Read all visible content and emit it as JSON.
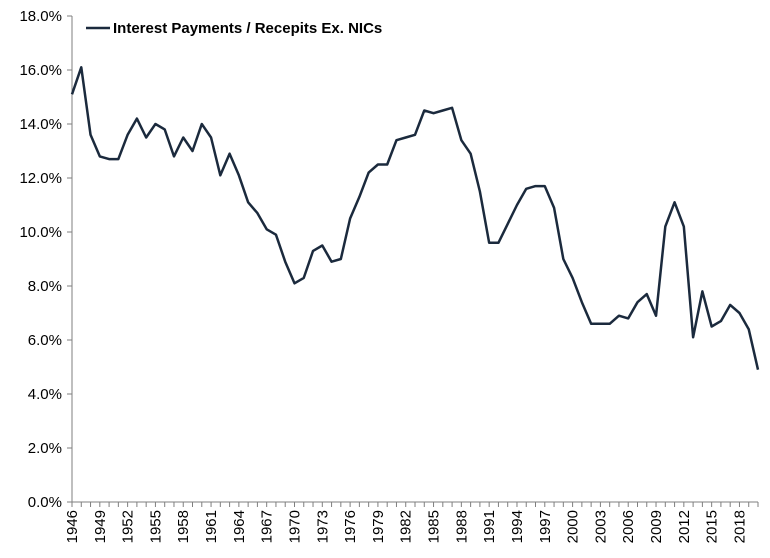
{
  "chart_data": {
    "type": "line",
    "title": "",
    "xlabel": "",
    "ylabel": "",
    "ylim": [
      0,
      18
    ],
    "y_ticks": [
      "0.0%",
      "2.0%",
      "4.0%",
      "6.0%",
      "8.0%",
      "10.0%",
      "12.0%",
      "14.0%",
      "16.0%",
      "18.0%"
    ],
    "x_ticks": [
      "1946",
      "1949",
      "1952",
      "1955",
      "1958",
      "1961",
      "1964",
      "1967",
      "1970",
      "1973",
      "1976",
      "1979",
      "1982",
      "1985",
      "1988",
      "1991",
      "1994",
      "1997",
      "2000",
      "2003",
      "2006",
      "2009",
      "2012",
      "2015",
      "2018"
    ],
    "legend_position": "top-left",
    "grid": false,
    "colors": {
      "line": "#1b2a3d",
      "axis": "#7f7f7f"
    },
    "x": [
      1946,
      1947,
      1948,
      1949,
      1950,
      1951,
      1952,
      1953,
      1954,
      1955,
      1956,
      1957,
      1958,
      1959,
      1960,
      1961,
      1962,
      1963,
      1964,
      1965,
      1966,
      1967,
      1968,
      1969,
      1970,
      1971,
      1972,
      1973,
      1974,
      1975,
      1976,
      1977,
      1978,
      1979,
      1980,
      1981,
      1982,
      1983,
      1984,
      1985,
      1986,
      1987,
      1988,
      1989,
      1990,
      1991,
      1992,
      1993,
      1994,
      1995,
      1996,
      1997,
      1998,
      1999,
      2000,
      2001,
      2002,
      2003,
      2004,
      2005,
      2006,
      2007,
      2008,
      2009,
      2010,
      2011,
      2012,
      2013,
      2014,
      2015,
      2016,
      2017,
      2018,
      2019,
      2020
    ],
    "series": [
      {
        "name": "Interest Payments / Recepits Ex. NICs",
        "values": [
          15.1,
          16.1,
          13.6,
          12.8,
          12.7,
          12.7,
          13.6,
          14.2,
          13.5,
          14.0,
          13.8,
          12.8,
          13.5,
          13.0,
          14.0,
          13.5,
          12.1,
          12.9,
          12.1,
          11.1,
          10.7,
          10.1,
          9.9,
          8.9,
          8.1,
          8.3,
          9.3,
          9.5,
          8.9,
          9.0,
          10.5,
          11.3,
          12.2,
          12.5,
          12.5,
          13.4,
          13.5,
          13.6,
          14.5,
          14.4,
          14.5,
          14.6,
          13.4,
          12.9,
          11.5,
          9.6,
          9.6,
          10.3,
          11.0,
          11.6,
          11.7,
          11.7,
          10.9,
          9.0,
          8.3,
          7.4,
          6.6,
          6.6,
          6.6,
          6.9,
          6.8,
          7.4,
          7.7,
          6.9,
          10.2,
          11.1,
          10.2,
          6.1,
          7.8,
          6.5,
          6.7,
          7.3,
          7.0,
          6.4,
          4.9
        ]
      }
    ]
  }
}
